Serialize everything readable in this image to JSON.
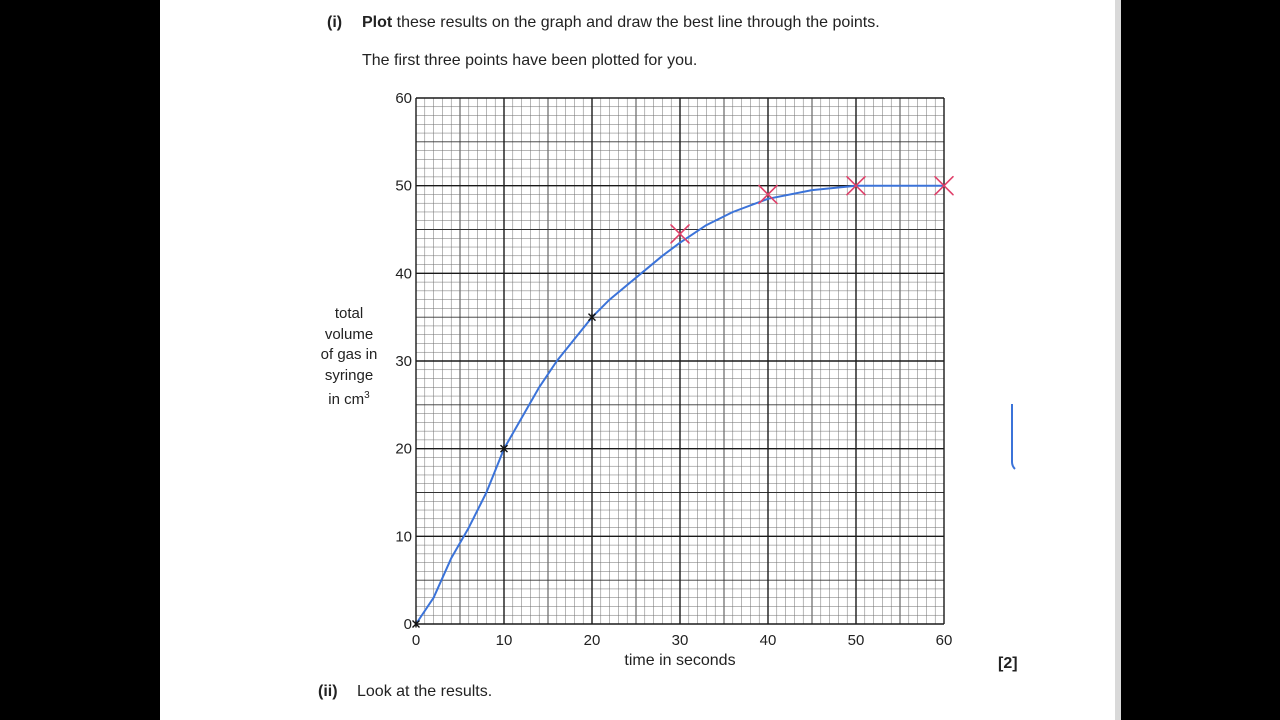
{
  "question": {
    "part_i_label": "(i)",
    "part_i_bold": "Plot",
    "part_i_text": "these results on the graph and draw the best line through the points.",
    "note": "The first three points have been plotted for you.",
    "marks": "[2]",
    "part_ii_label": "(ii)",
    "part_ii_text": "Look at the results."
  },
  "chart_data": {
    "type": "line",
    "xlabel": "time in seconds",
    "ylabel_lines": [
      "total",
      "volume",
      "of gas in",
      "syringe"
    ],
    "ylabel_unit": "in cm",
    "ylabel_unit_sup": "3",
    "xlim": [
      0,
      60
    ],
    "ylim": [
      0,
      60
    ],
    "xticks": [
      0,
      10,
      20,
      30,
      40,
      50,
      60
    ],
    "yticks": [
      0,
      10,
      20,
      30,
      40,
      50,
      60
    ],
    "grid": true,
    "printed_points": [
      {
        "x": 0,
        "y": 0
      },
      {
        "x": 10,
        "y": 20
      },
      {
        "x": 20,
        "y": 35
      }
    ],
    "plotted_points": [
      {
        "x": 30,
        "y": 44.5
      },
      {
        "x": 40,
        "y": 49
      },
      {
        "x": 50,
        "y": 50
      },
      {
        "x": 60,
        "y": 50
      }
    ],
    "best_fit_line": [
      {
        "x": 0,
        "y": 0
      },
      {
        "x": 2,
        "y": 3
      },
      {
        "x": 4,
        "y": 7.5
      },
      {
        "x": 6,
        "y": 11
      },
      {
        "x": 8,
        "y": 15
      },
      {
        "x": 10,
        "y": 20
      },
      {
        "x": 12,
        "y": 23.5
      },
      {
        "x": 14,
        "y": 27
      },
      {
        "x": 16,
        "y": 30
      },
      {
        "x": 18,
        "y": 32.5
      },
      {
        "x": 20,
        "y": 35
      },
      {
        "x": 22,
        "y": 37
      },
      {
        "x": 25,
        "y": 39.5
      },
      {
        "x": 28,
        "y": 42
      },
      {
        "x": 30,
        "y": 43.5
      },
      {
        "x": 33,
        "y": 45.5
      },
      {
        "x": 36,
        "y": 47
      },
      {
        "x": 40,
        "y": 48.5
      },
      {
        "x": 45,
        "y": 49.5
      },
      {
        "x": 50,
        "y": 50
      },
      {
        "x": 55,
        "y": 50
      },
      {
        "x": 60,
        "y": 50
      }
    ],
    "colors": {
      "grid_major": "#1a1a1a",
      "grid_minor": "#6f6f6f",
      "line": "#3b73d9",
      "cross_student": "#e0406a",
      "cross_printed": "#111111"
    }
  }
}
